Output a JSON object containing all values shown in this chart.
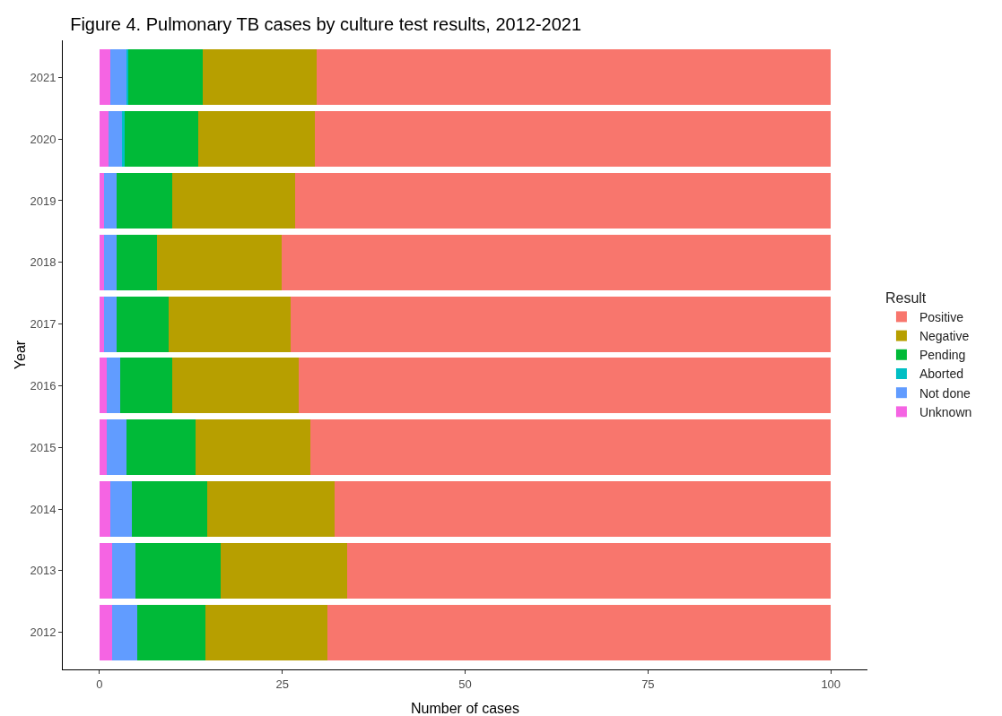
{
  "chart_data": {
    "type": "bar",
    "orientation": "horizontal",
    "stacked": true,
    "title": "Figure 4. Pulmonary TB cases by culture test results, 2012-2021",
    "xlabel": "Number of cases",
    "ylabel": "Year",
    "legend_title": "Result",
    "legend": "right",
    "grid": false,
    "categories": [
      "2021",
      "2020",
      "2019",
      "2018",
      "2017",
      "2016",
      "2015",
      "2014",
      "2013",
      "2012"
    ],
    "xlim": [
      -5,
      105
    ],
    "xticks": [
      0,
      25,
      50,
      75,
      100
    ],
    "series": [
      {
        "name": "Unknown",
        "color": "#f564e3",
        "values": [
          1.5,
          1.3,
          0.6,
          0.6,
          0.6,
          1.0,
          1.0,
          1.5,
          1.7,
          1.7
        ]
      },
      {
        "name": "Not done",
        "color": "#619cff",
        "values": [
          2.3,
          1.8,
          1.8,
          1.8,
          1.8,
          1.8,
          2.7,
          2.9,
          3.2,
          3.5
        ]
      },
      {
        "name": "Aborted",
        "color": "#00bfc4",
        "values": [
          0.1,
          0.4,
          0,
          0,
          0,
          0,
          0,
          0,
          0,
          0
        ]
      },
      {
        "name": "Pending",
        "color": "#00ba38",
        "values": [
          10.2,
          10.0,
          7.6,
          5.5,
          7.1,
          7.1,
          9.4,
          10.4,
          11.7,
          9.3
        ]
      },
      {
        "name": "Negative",
        "color": "#b79f00",
        "values": [
          15.6,
          16.0,
          16.7,
          17.0,
          16.7,
          17.4,
          15.7,
          17.3,
          17.3,
          16.7
        ]
      },
      {
        "name": "Positive",
        "color": "#f8766d",
        "values": [
          70.3,
          70.5,
          73.3,
          75.1,
          73.8,
          72.7,
          71.2,
          67.9,
          66.1,
          68.8
        ]
      }
    ]
  }
}
